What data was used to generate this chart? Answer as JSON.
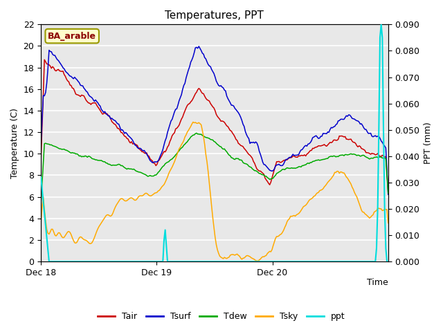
{
  "title": "Temperatures, PPT",
  "xlabel": "Time",
  "ylabel_left": "Temperature (C)",
  "ylabel_right": "PPT (mm)",
  "legend_label": "BA_arable",
  "x_ticks_labels": [
    "Dec 18",
    "Dec 19",
    "Dec 20"
  ],
  "ylim_left": [
    0,
    22
  ],
  "ylim_right": [
    0,
    0.09
  ],
  "yticks_left": [
    0,
    2,
    4,
    6,
    8,
    10,
    12,
    14,
    16,
    18,
    20,
    22
  ],
  "yticks_right": [
    0.0,
    0.01,
    0.02,
    0.03,
    0.04,
    0.05,
    0.06,
    0.07,
    0.08,
    0.09
  ],
  "colors": {
    "Tair": "#cc0000",
    "Tsurf": "#0000cc",
    "Tdew": "#00aa00",
    "Tsky": "#ffaa00",
    "ppt": "#00dddd"
  },
  "background_color": "#e8e8e8",
  "grid_color": "#ffffff",
  "figsize": [
    6.4,
    4.8
  ],
  "dpi": 100
}
